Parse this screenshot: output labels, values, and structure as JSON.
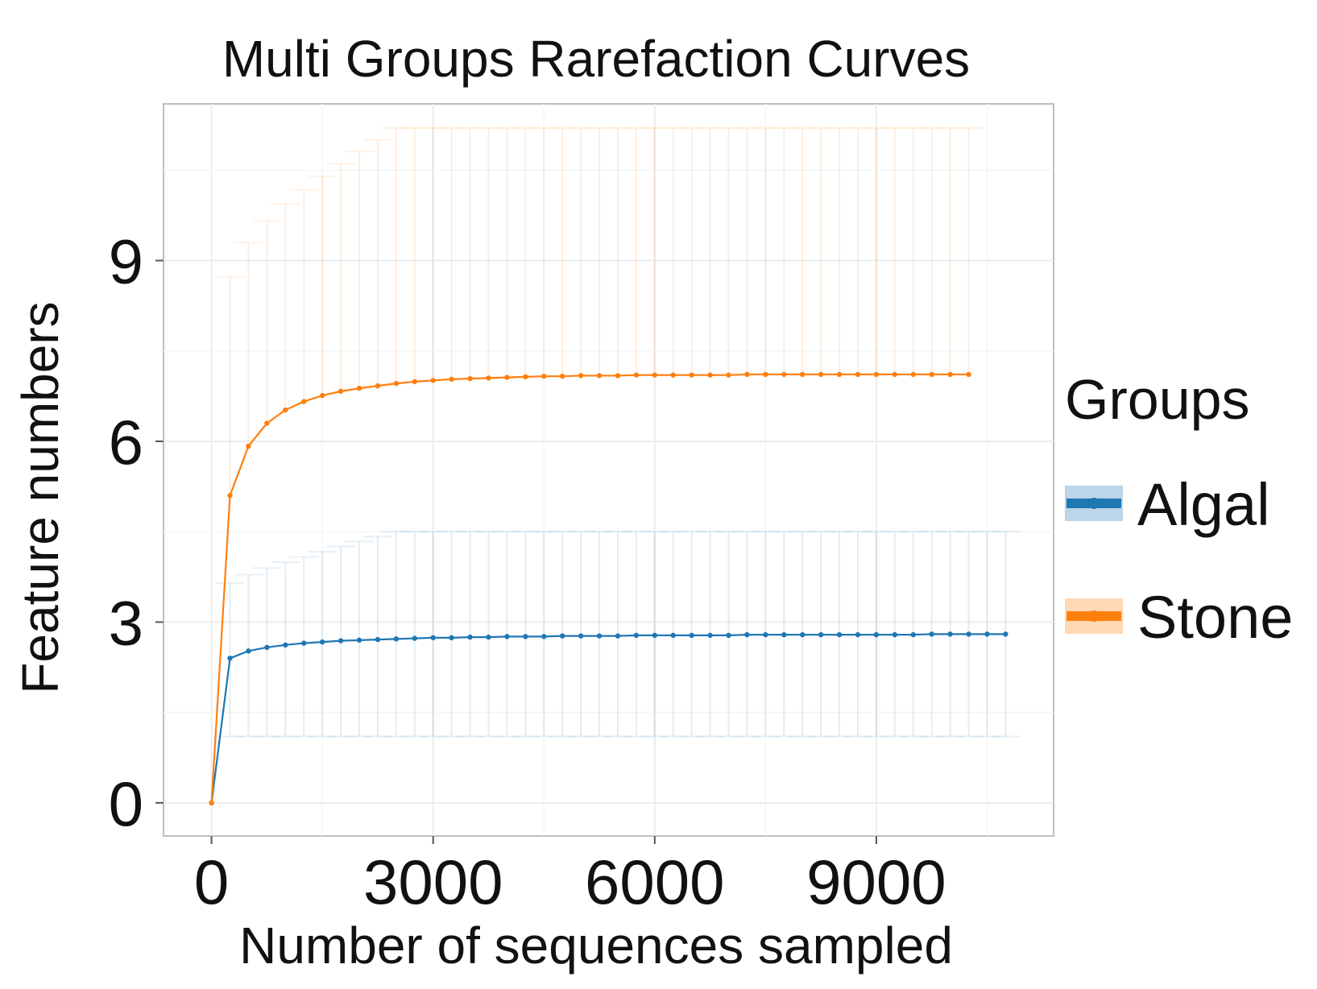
{
  "chart_data": {
    "type": "line",
    "title": "Multi Groups Rarefaction Curves",
    "xlabel": "Number of sequences sampled",
    "ylabel": "Feature numbers",
    "xlim": [
      -650,
      11400
    ],
    "ylim": [
      -0.55,
      11.6
    ],
    "x_ticks": [
      0,
      3000,
      6000,
      9000
    ],
    "y_ticks": [
      0,
      3,
      6,
      9
    ],
    "grid": true,
    "legend": {
      "title": "Groups",
      "position": "right"
    },
    "series": [
      {
        "name": "Algal",
        "color": "#1f77b4",
        "x": [
          0,
          250,
          500,
          750,
          1000,
          1250,
          1500,
          1750,
          2000,
          2250,
          2500,
          2750,
          3000,
          3250,
          3500,
          3750,
          4000,
          4250,
          4500,
          4750,
          5000,
          5250,
          5500,
          5750,
          6000,
          6250,
          6500,
          6750,
          7000,
          7250,
          7500,
          7750,
          8000,
          8250,
          8500,
          8750,
          9000,
          9250,
          9500,
          9750,
          10000,
          10250,
          10500,
          10750
        ],
        "y": [
          0,
          2.4,
          2.52,
          2.58,
          2.62,
          2.65,
          2.67,
          2.69,
          2.7,
          2.71,
          2.72,
          2.73,
          2.74,
          2.74,
          2.75,
          2.75,
          2.76,
          2.76,
          2.76,
          2.77,
          2.77,
          2.77,
          2.77,
          2.78,
          2.78,
          2.78,
          2.78,
          2.78,
          2.78,
          2.79,
          2.79,
          2.79,
          2.79,
          2.79,
          2.79,
          2.79,
          2.79,
          2.79,
          2.79,
          2.8,
          2.8,
          2.8,
          2.8,
          2.8
        ],
        "error_lower": 1.1,
        "error_upper": 4.5
      },
      {
        "name": "Stone",
        "color": "#ff7f0e",
        "x": [
          0,
          250,
          500,
          750,
          1000,
          1250,
          1500,
          1750,
          2000,
          2250,
          2500,
          2750,
          3000,
          3250,
          3500,
          3750,
          4000,
          4250,
          4500,
          4750,
          5000,
          5250,
          5500,
          5750,
          6000,
          6250,
          6500,
          6750,
          7000,
          7250,
          7500,
          7750,
          8000,
          8250,
          8500,
          8750,
          9000,
          9250,
          9500,
          9750,
          10000,
          10250
        ],
        "y": [
          0,
          5.1,
          5.92,
          6.3,
          6.52,
          6.66,
          6.76,
          6.83,
          6.88,
          6.92,
          6.96,
          6.99,
          7.01,
          7.03,
          7.04,
          7.05,
          7.06,
          7.07,
          7.08,
          7.08,
          7.09,
          7.09,
          7.09,
          7.1,
          7.1,
          7.1,
          7.1,
          7.1,
          7.1,
          7.11,
          7.11,
          7.11,
          7.11,
          7.11,
          7.11,
          7.11,
          7.11,
          7.11,
          7.11,
          7.11,
          7.11,
          7.11
        ],
        "error_upper": 11.2
      }
    ]
  }
}
